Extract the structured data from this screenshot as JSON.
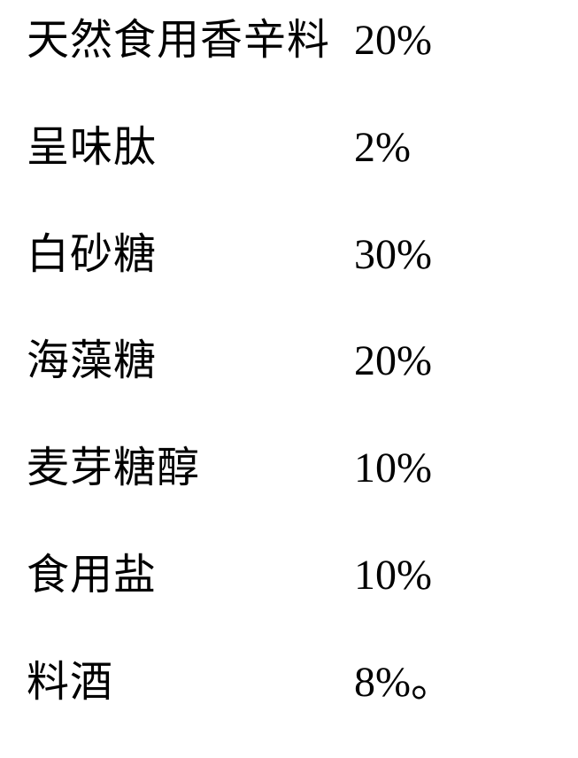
{
  "rows": [
    {
      "label": "天然食用香辛料",
      "value": "20%"
    },
    {
      "label": "呈味肽",
      "value": "2%"
    },
    {
      "label": "白砂糖",
      "value": "30%"
    },
    {
      "label": "海藻糖",
      "value": "20%"
    },
    {
      "label": "麦芽糖醇",
      "value": "10%"
    },
    {
      "label": "食用盐",
      "value": "10%"
    },
    {
      "label": "料酒",
      "value": "8%。"
    }
  ]
}
